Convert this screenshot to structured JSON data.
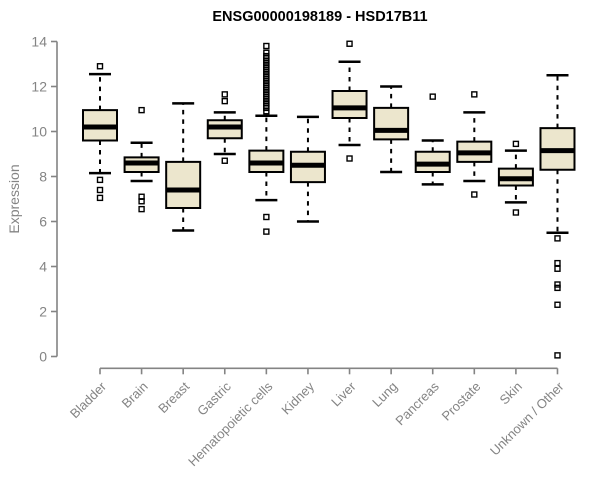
{
  "chart_data": {
    "type": "boxplot",
    "title": "ENSG00000198189 - HSD17B11",
    "xlabel": "",
    "ylabel": "Expression",
    "ylim": [
      0,
      14
    ],
    "yticks": [
      0,
      2,
      4,
      6,
      8,
      10,
      12,
      14
    ],
    "grid": false,
    "legend": "none",
    "categories": [
      "Bladder",
      "Brain",
      "Breast",
      "Gastric",
      "Hematopoietic cells",
      "Kidney",
      "Liver",
      "Lung",
      "Pancreas",
      "Prostate",
      "Skin",
      "Unknown / Other"
    ],
    "series": [
      {
        "name": "Bladder",
        "whisker_low": 8.15,
        "q1": 9.6,
        "median": 10.2,
        "q3": 10.95,
        "whisker_high": 12.55,
        "outliers": [
          12.9,
          7.85,
          7.4,
          7.05
        ]
      },
      {
        "name": "Brain",
        "whisker_low": 7.8,
        "q1": 8.2,
        "median": 8.6,
        "q3": 8.85,
        "whisker_high": 9.5,
        "outliers": [
          10.95,
          7.1,
          6.9,
          6.55
        ]
      },
      {
        "name": "Breast",
        "whisker_low": 5.6,
        "q1": 6.6,
        "median": 7.4,
        "q3": 8.65,
        "whisker_high": 11.25,
        "outliers": []
      },
      {
        "name": "Gastric",
        "whisker_low": 9.0,
        "q1": 9.7,
        "median": 10.2,
        "q3": 10.5,
        "whisker_high": 10.85,
        "outliers": [
          11.65,
          11.35,
          8.7
        ]
      },
      {
        "name": "Hematopoietic cells",
        "whisker_low": 6.95,
        "q1": 8.2,
        "median": 8.6,
        "q3": 9.15,
        "whisker_high": 10.7,
        "outliers": [
          13.8,
          13.5,
          13.35,
          13.25,
          13.15,
          13.05,
          12.95,
          12.85,
          12.75,
          12.65,
          12.55,
          12.45,
          12.35,
          12.25,
          12.15,
          12.05,
          11.95,
          11.85,
          11.75,
          11.65,
          11.55,
          11.45,
          11.35,
          11.25,
          11.15,
          11.05,
          10.9,
          6.2,
          5.55
        ]
      },
      {
        "name": "Kidney",
        "whisker_low": 6.0,
        "q1": 7.75,
        "median": 8.5,
        "q3": 9.1,
        "whisker_high": 10.65,
        "outliers": []
      },
      {
        "name": "Liver",
        "whisker_low": 9.4,
        "q1": 10.6,
        "median": 11.05,
        "q3": 11.8,
        "whisker_high": 13.1,
        "outliers": [
          13.9,
          8.8
        ]
      },
      {
        "name": "Lung",
        "whisker_low": 8.2,
        "q1": 9.65,
        "median": 10.05,
        "q3": 11.05,
        "whisker_high": 12.0,
        "outliers": []
      },
      {
        "name": "Pancreas",
        "whisker_low": 7.65,
        "q1": 8.2,
        "median": 8.55,
        "q3": 9.1,
        "whisker_high": 9.6,
        "outliers": [
          11.55
        ]
      },
      {
        "name": "Prostate",
        "whisker_low": 7.8,
        "q1": 8.65,
        "median": 9.05,
        "q3": 9.55,
        "whisker_high": 10.85,
        "outliers": [
          11.65,
          7.2
        ]
      },
      {
        "name": "Skin",
        "whisker_low": 6.85,
        "q1": 7.6,
        "median": 7.9,
        "q3": 8.35,
        "whisker_high": 9.15,
        "outliers": [
          9.45,
          6.4
        ]
      },
      {
        "name": "Unknown / Other",
        "whisker_low": 5.5,
        "q1": 8.3,
        "median": 9.15,
        "q3": 10.15,
        "whisker_high": 12.5,
        "outliers": [
          5.25,
          4.15,
          3.9,
          3.2,
          3.05,
          2.3,
          0.05
        ]
      }
    ],
    "colors": {
      "background": "#FFFFFF",
      "box_fill": "#ECE6CD",
      "box_border": "#000000",
      "median": "#000000",
      "whisker": "#000000",
      "outlier": "#000000",
      "axis": "#848484",
      "tick_label": "#848484",
      "title": "#000000"
    }
  }
}
